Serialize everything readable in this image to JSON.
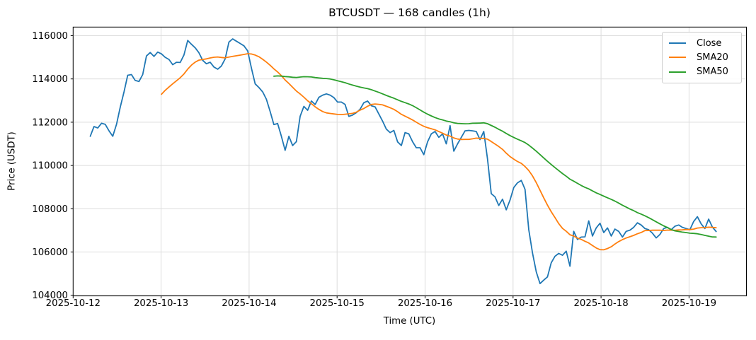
{
  "figure": {
    "background": "#ffffff",
    "grid_color": "#dcdcdc",
    "spine_color": "#000000"
  },
  "chart_data": {
    "type": "line",
    "title": "BTCUSDT — 168 candles (1h)",
    "xlabel": "Time (UTC)",
    "ylabel": "Price (USDT)",
    "symbol": "BTCUSDT",
    "timeframe": "1h",
    "candle_count": 168,
    "grid": true,
    "legend_position": "upper right",
    "x_tick_labels": [
      "2025-10-12",
      "2025-10-13",
      "2025-10-14",
      "2025-10-15",
      "2025-10-16",
      "2025-10-17",
      "2025-10-18",
      "2025-10-19"
    ],
    "y_ticks": [
      104000,
      106000,
      108000,
      110000,
      112000,
      114000,
      116000
    ],
    "ylim": [
      103972,
      116397
    ],
    "series": [
      {
        "name": "Close",
        "color": "#1f77b4",
        "values": [
          111350,
          111800,
          111730,
          111950,
          111900,
          111600,
          111350,
          111900,
          112700,
          113400,
          114170,
          114200,
          113930,
          113880,
          114200,
          115060,
          115220,
          115040,
          115240,
          115160,
          115000,
          114900,
          114660,
          114770,
          114760,
          115110,
          115780,
          115600,
          115440,
          115210,
          114860,
          114700,
          114770,
          114550,
          114450,
          114600,
          114930,
          115700,
          115850,
          115745,
          115640,
          115530,
          115300,
          114500,
          113770,
          113600,
          113400,
          113060,
          112500,
          111890,
          111940,
          111350,
          110700,
          111350,
          110920,
          111100,
          112270,
          112730,
          112550,
          112980,
          112820,
          113150,
          113250,
          113310,
          113250,
          113140,
          112930,
          112930,
          112820,
          112270,
          112330,
          112440,
          112600,
          112900,
          112980,
          112760,
          112710,
          112380,
          112050,
          111680,
          111520,
          111620,
          111090,
          110920,
          111520,
          111460,
          111100,
          110820,
          110820,
          110500,
          111090,
          111460,
          111570,
          111300,
          111460,
          111000,
          111840,
          110660,
          111000,
          111300,
          111600,
          111620,
          111600,
          111570,
          111195,
          111570,
          110300,
          108700,
          108550,
          108150,
          108440,
          107950,
          108400,
          108980,
          109200,
          109310,
          108900,
          107030,
          105950,
          105080,
          104540,
          104700,
          104850,
          105500,
          105800,
          105935,
          105850,
          106040,
          105345,
          106955,
          106580,
          106690,
          106700,
          107437,
          106740,
          107115,
          107330,
          106900,
          107115,
          106740,
          107060,
          106955,
          106690,
          106955,
          107010,
          107140,
          107350,
          107250,
          107085,
          107030,
          106870,
          106650,
          106815,
          107085,
          107140,
          107030,
          107195,
          107250,
          107140,
          107085,
          107030,
          107410,
          107630,
          107300,
          107085,
          107520,
          107150,
          106950
        ]
      },
      {
        "name": "SMA20",
        "color": "#ff7f0e",
        "derived": "sma",
        "window": 20,
        "source": "Close"
      },
      {
        "name": "SMA50",
        "color": "#2ca02c",
        "derived": "sma",
        "window": 50,
        "source": "Close"
      }
    ]
  }
}
